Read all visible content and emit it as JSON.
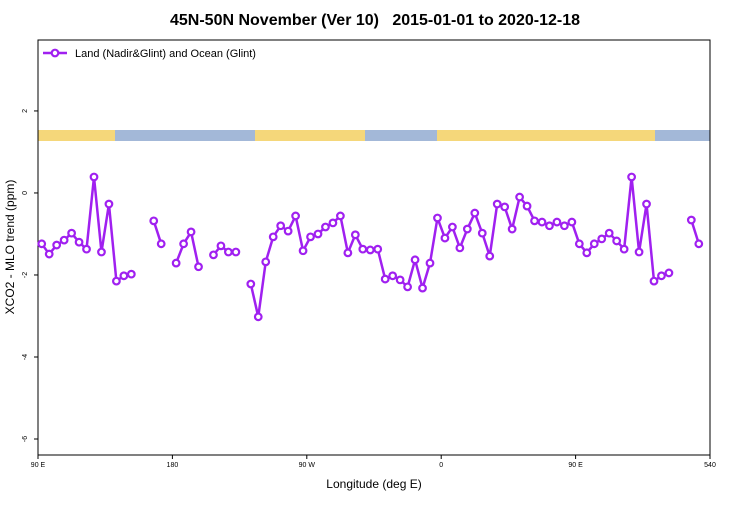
{
  "chart_data": {
    "type": "line",
    "title": "45N-50N November (Ver 10)   2015-01-01 to 2020-12-18",
    "xlabel": "Longitude (deg E)",
    "ylabel": "XCO2 - MLO trend (ppm)",
    "x": [
      92.5,
      97.5,
      102.5,
      107.5,
      112.5,
      117.5,
      122.5,
      127.5,
      132.5,
      137.5,
      142.5,
      147.5,
      152.5,
      157.5,
      162.5,
      167.5,
      172.5,
      177.5,
      182.5,
      187.5,
      192.5,
      197.5,
      202.5,
      207.5,
      212.5,
      217.5,
      222.5,
      227.5,
      232.5,
      237.5,
      242.5,
      247.5,
      252.5,
      257.5,
      262.5,
      267.5,
      272.5,
      277.5,
      282.5,
      287.5,
      292.5,
      297.5,
      302.5,
      307.5,
      312.5,
      317.5,
      322.5,
      327.5,
      332.5,
      337.5,
      342.5,
      347.5,
      352.5,
      357.5,
      362.5,
      367.5,
      372.5,
      377.5,
      382.5,
      387.5,
      392.5,
      397.5,
      402.5,
      407.5,
      412.5,
      417.5,
      422.5,
      427.5,
      432.5,
      437.5,
      442.5,
      447.5,
      452.5,
      457.5,
      462.5,
      467.5,
      472.5,
      477.5,
      482.5,
      487.5,
      492.5,
      497.5,
      502.5,
      507.5,
      512.5,
      517.5,
      522.5,
      527.5,
      532.5
    ],
    "series": [
      {
        "name": "Land (Nadir&Glint) and Ocean (Glint)",
        "color": "#a020f0",
        "values": [
          -1.24,
          -1.49,
          -1.27,
          -1.15,
          -0.98,
          -1.2,
          -1.37,
          0.39,
          -1.44,
          -0.27,
          -2.15,
          -2.02,
          -1.98,
          null,
          null,
          -0.68,
          -1.24,
          null,
          -1.71,
          -1.24,
          -0.95,
          -1.8,
          null,
          -1.51,
          -1.29,
          -1.44,
          -1.44,
          null,
          -2.22,
          -3.02,
          -1.68,
          -1.07,
          -0.8,
          -0.93,
          -0.56,
          -1.41,
          -1.07,
          -1.0,
          -0.83,
          -0.73,
          -0.56,
          -1.46,
          -1.02,
          -1.37,
          -1.39,
          -1.37,
          -2.1,
          -2.02,
          -2.12,
          -2.29,
          -1.63,
          -2.32,
          -1.71,
          -0.61,
          -1.1,
          -0.83,
          -1.34,
          -0.88,
          -0.49,
          -0.98,
          -1.54,
          -0.27,
          -0.34,
          -0.88,
          -0.1,
          -0.32,
          -0.68,
          -0.71,
          -0.8,
          -0.71,
          -0.8,
          -0.71,
          -1.24,
          -1.46,
          -1.24,
          -1.12,
          -0.98,
          -1.17,
          -1.37,
          0.39,
          -1.44,
          -0.27,
          -2.15,
          -2.02,
          -1.95,
          null,
          null,
          -0.66,
          -1.24
        ]
      }
    ],
    "xlim": [
      90,
      540
    ],
    "xticks": [
      {
        "value": 90,
        "label": "90 E"
      },
      180,
      {
        "value": 270,
        "label": "90 W"
      },
      {
        "value": 360,
        "label": "0"
      },
      {
        "value": 450,
        "label": "90 E"
      },
      540
    ],
    "ylim": [
      -6.39,
      3.73
    ],
    "yticks": [
      -6,
      -4,
      -2,
      0,
      2
    ],
    "legend": "top-left"
  }
}
